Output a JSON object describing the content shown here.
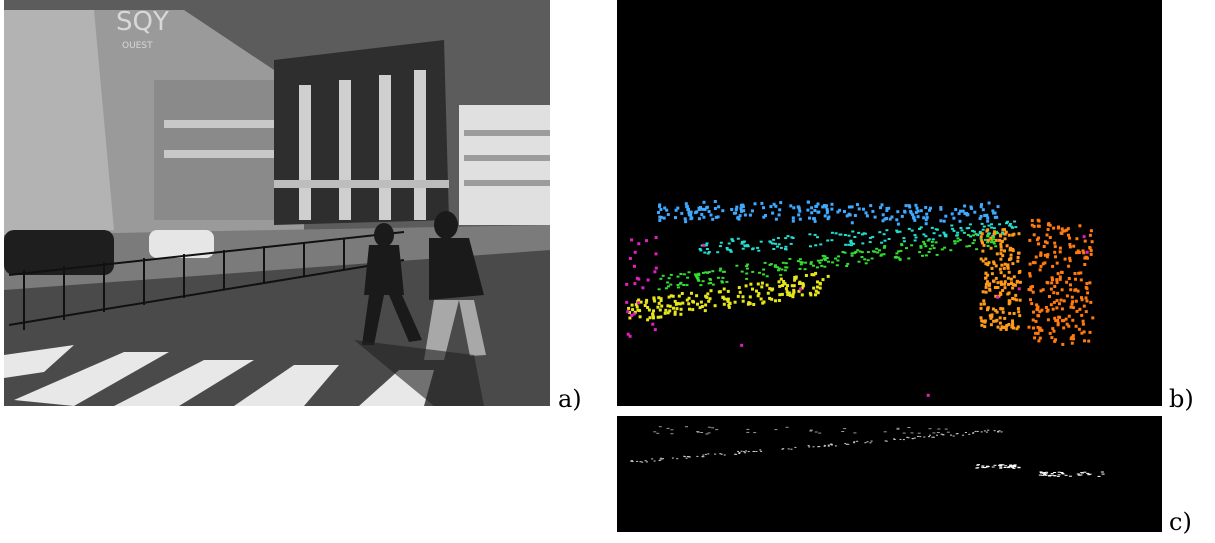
{
  "figure": {
    "panels": [
      {
        "id": "a",
        "label": "a)",
        "sign_text": "SQY",
        "sign_subtext": "OUEST"
      },
      {
        "id": "b",
        "label": "b)"
      },
      {
        "id": "c",
        "label": "c)"
      }
    ],
    "colors": {
      "grayscale_photo": "#6a6a6a",
      "background_dark": "#000000",
      "flow_blue": "#3fa9ff",
      "flow_cyan": "#22e0d0",
      "flow_green": "#33dd33",
      "flow_yellow": "#e6e61a",
      "flow_orange": "#ff9a1a",
      "flow_magenta": "#e020c0"
    }
  }
}
